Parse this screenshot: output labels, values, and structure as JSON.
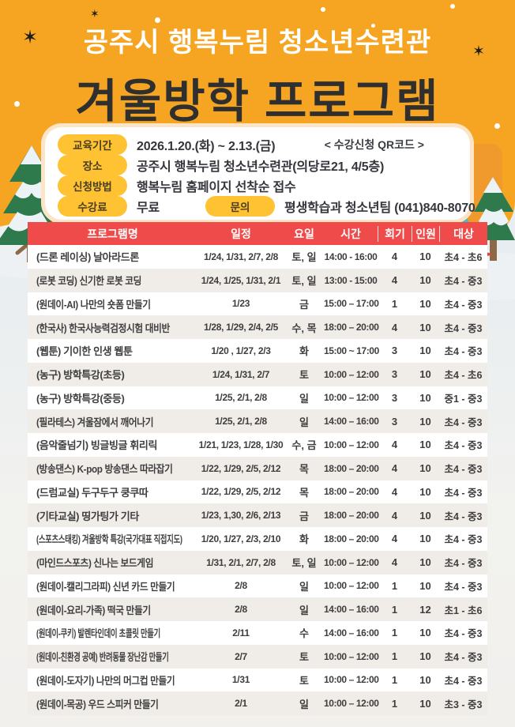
{
  "header": {
    "subtitle": "공주시 행복누림 청소년수련관",
    "title": "겨울방학 프로그램"
  },
  "info": {
    "items": [
      {
        "label": "교육기간",
        "value": "2026.1.20.(화) ~ 2.13.(금)"
      },
      {
        "label": "장소",
        "value": "공주시 행복누림 청소년수련관(의당로21, 4/5층)"
      },
      {
        "label": "신청방법",
        "value": "행복누림 홈페이지 선착순 접수"
      },
      {
        "label": "수강료",
        "value": "무료"
      },
      {
        "label": "문의",
        "value": "평생학습과 청소년팀 (041)840-8070"
      }
    ],
    "qr_note": "< 수강신청 QR코드 >"
  },
  "table": {
    "headers": [
      "프로그램명",
      "일정",
      "요일",
      "시간",
      "회기",
      "인원",
      "대상"
    ],
    "header_keys": [
      "program",
      "dates",
      "day",
      "time",
      "sessions",
      "capacity",
      "target"
    ],
    "rows": [
      [
        "(드론 레이싱) 날아라드론",
        "1/24, 1/31, 2/7, 2/8",
        "토, 일",
        "14:00 - 16:00",
        "4",
        "10",
        "초4 - 초6"
      ],
      [
        "(로봇 코딩) 신기한 로봇 코딩",
        "1/24, 1/25, 1/31, 2/1",
        "토, 일",
        "13:00 - 15:00",
        "4",
        "10",
        "초4 - 중3"
      ],
      [
        "(원데이-AI) 나만의 숏폼 만들기",
        "1/23",
        "금",
        "15:00 – 17:00",
        "1",
        "10",
        "초4 - 중3"
      ],
      [
        "(한국사) 한국사능력검정시험 대비반",
        "1/28, 1/29, 2/4, 2/5",
        "수, 목",
        "18:00 – 20:00",
        "4",
        "10",
        "초4 - 중3"
      ],
      [
        "(웹툰) 기이한 인생 웹툰",
        "1/20 , 1/27, 2/3",
        "화",
        "15:00 ~ 17:00",
        "3",
        "10",
        "초4 - 중3"
      ],
      [
        "(농구) 방학특강(초등)",
        "1/24, 1/31, 2/7",
        "토",
        "10:00 – 12:00",
        "3",
        "10",
        "초4 - 초6"
      ],
      [
        "(농구) 방학특강(중등)",
        "1/25, 2/1, 2/8",
        "일",
        "10:00 – 12:00",
        "3",
        "10",
        "중1 - 중3"
      ],
      [
        "(필라테스) 겨울잠에서 깨어나기",
        "1/25, 2/1, 2/8",
        "일",
        "14:00 – 16:00",
        "3",
        "10",
        "초4 - 중3"
      ],
      [
        "(음악줄넘기) 빙글빙글 휘리릭",
        "1/21, 1/23, 1/28, 1/30",
        "수, 금",
        "10:00 – 12:00",
        "4",
        "10",
        "초4 - 중3"
      ],
      [
        "(방송댄스) K-pop 방송댄스 따라잡기",
        "1/22, 1/29, 2/5, 2/12",
        "목",
        "18:00 – 20:00",
        "4",
        "10",
        "초4 - 중3"
      ],
      [
        "(드럼교실) 두구두구 쿵쿠따",
        "1/22, 1/29, 2/5, 2/12",
        "목",
        "18:00 – 20:00",
        "4",
        "10",
        "초4 - 중3"
      ],
      [
        "(기타교실) 띵가팅가 기타",
        "1/23, 1,30, 2/6, 2/13",
        "금",
        "18:00 – 20:00",
        "4",
        "10",
        "초4 - 중3"
      ],
      [
        "(스포츠스태킹) 겨울방학 특강(국가대표 직접지도)",
        "1/20, 1/27, 2/3, 2/10",
        "화",
        "18:00 – 20:00",
        "4",
        "10",
        "초4 - 중3"
      ],
      [
        "(마인드스포츠) 신나는 보드게임",
        "1/31, 2/1, 2/7, 2/8",
        "토, 일",
        "10:00 – 12:00",
        "4",
        "10",
        "초4 - 중3"
      ],
      [
        "(원데이-캘리그라피) 신년 카드 만들기",
        "2/8",
        "일",
        "10:00 – 12:00",
        "1",
        "10",
        "초4 - 중3"
      ],
      [
        "(원데이-요리-가족) 떡국 만들기",
        "2/8",
        "일",
        "14:00 – 16:00",
        "1",
        "12",
        "초1 - 초6"
      ],
      [
        "(원데이-쿠키) 발렌타인데이 초콜릿 만들기",
        "2/11",
        "수",
        "14:00 – 16:00",
        "1",
        "10",
        "초4 - 중3"
      ],
      [
        "(원데이-친환경 공예) 반려동물 장난감 만들기",
        "2/7",
        "토",
        "10:00 – 12:00",
        "1",
        "10",
        "초4 - 중3"
      ],
      [
        "(원데이-도자기) 나만의 머그컵 만들기",
        "1/31",
        "토",
        "10:00 – 12:00",
        "1",
        "10",
        "초4 - 중3"
      ],
      [
        "(원데이-목공) 우드 스피커 만들기",
        "2/1",
        "일",
        "10:00 – 12:00",
        "1",
        "10",
        "초3 - 중3"
      ]
    ]
  },
  "decor": {
    "sparkle_glyph": "✶"
  },
  "colors": {
    "background_orange": "#F6A522",
    "table_header_red": "#EF4B4A",
    "pill_yellow": "#FFC233",
    "row_alt_gray": "#F0EDE8",
    "title_dark": "#2F2F2F",
    "body_text": "#3E3E3E"
  }
}
